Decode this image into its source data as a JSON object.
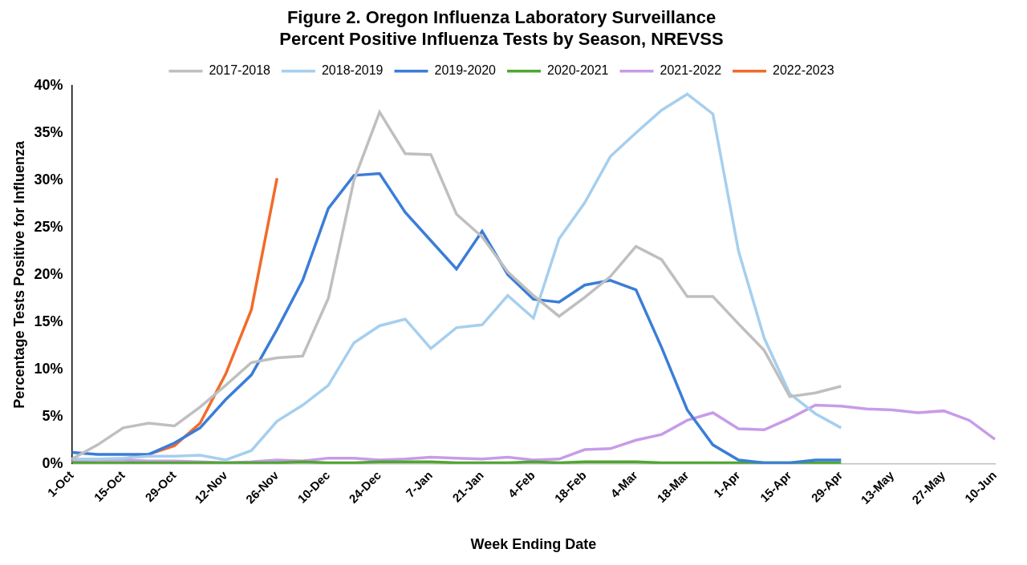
{
  "chart_data": {
    "type": "line",
    "title": "Figure 2. Oregon Influenza Laboratory Surveillance",
    "subtitle": "Percent Positive Influenza Tests by Season, NREVSS",
    "x_label": "Week Ending Date",
    "y_label": "Percentage Tests Positive for Influenza",
    "categories": [
      "1-Oct",
      null,
      "15-Oct",
      null,
      "29-Oct",
      null,
      "12-Nov",
      null,
      "26-Nov",
      null,
      "10-Dec",
      null,
      "24-Dec",
      null,
      "7-Jan",
      null,
      "21-Jan",
      null,
      "4-Feb",
      null,
      "18-Feb",
      null,
      "4-Mar",
      null,
      "18-Mar",
      null,
      "1-Apr",
      null,
      "15-Apr",
      null,
      "29-Apr",
      null,
      "13-May",
      null,
      "27-May",
      null,
      "10-Jun"
    ],
    "series": [
      {
        "name": "2017-2018",
        "color": "#bfbfbf",
        "values": [
          0.5,
          2.0,
          3.8,
          4.3,
          4.0,
          6.0,
          8.3,
          10.7,
          11.2,
          11.4,
          17.5,
          30.0,
          37.2,
          32.8,
          32.7,
          26.4,
          24.0,
          20.3,
          17.8,
          15.6,
          17.6,
          19.8,
          23.0,
          21.6,
          17.7,
          17.7,
          14.8,
          12.0,
          7.1,
          7.5,
          8.2,
          null,
          null,
          null,
          null,
          null,
          null
        ]
      },
      {
        "name": "2018-2019",
        "color": "#a6cfee",
        "values": [
          0.5,
          0.5,
          0.6,
          0.8,
          0.8,
          0.9,
          0.4,
          1.4,
          4.5,
          6.2,
          8.3,
          12.8,
          14.6,
          15.3,
          12.2,
          14.4,
          14.7,
          17.8,
          15.4,
          23.8,
          27.6,
          32.5,
          35.0,
          37.4,
          39.1,
          37.0,
          22.5,
          13.3,
          7.4,
          5.3,
          3.8,
          null,
          null,
          null,
          null,
          null,
          null
        ]
      },
      {
        "name": "2019-2020",
        "color": "#3b7dd8",
        "values": [
          1.2,
          1.0,
          1.0,
          1.0,
          2.2,
          3.8,
          6.8,
          9.4,
          14.2,
          19.4,
          27.0,
          30.5,
          30.7,
          26.6,
          23.6,
          20.6,
          24.6,
          20.0,
          17.4,
          17.1,
          18.9,
          19.4,
          18.4,
          12.3,
          5.7,
          2.0,
          0.4,
          0.1,
          0.1,
          0.4,
          0.4,
          null,
          null,
          null,
          null,
          null,
          null
        ]
      },
      {
        "name": "2020-2021",
        "color": "#4ea72e",
        "values": [
          0.1,
          0.1,
          0.1,
          0.1,
          0.1,
          0.1,
          0.1,
          0.1,
          0.1,
          0.2,
          0.1,
          0.1,
          0.2,
          0.2,
          0.2,
          0.1,
          0.1,
          0.1,
          0.2,
          0.1,
          0.2,
          0.2,
          0.2,
          0.1,
          0.1,
          0.1,
          0.1,
          0.1,
          0.1,
          0.1,
          0.1,
          null,
          null,
          null,
          null,
          null,
          null
        ]
      },
      {
        "name": "2021-2022",
        "color": "#c89be8",
        "values": [
          0.3,
          0.4,
          0.4,
          0.3,
          0.3,
          0.2,
          0.1,
          0.2,
          0.4,
          0.3,
          0.6,
          0.6,
          0.4,
          0.5,
          0.7,
          0.6,
          0.5,
          0.7,
          0.4,
          0.5,
          1.5,
          1.6,
          2.5,
          3.1,
          4.6,
          5.4,
          3.7,
          3.6,
          4.8,
          6.2,
          6.1,
          5.8,
          5.7,
          5.4,
          5.6,
          4.6,
          2.6
        ]
      },
      {
        "name": "2022-2023",
        "color": "#f26b2a",
        "values": [
          0.3,
          0.5,
          0.5,
          1.0,
          1.9,
          4.3,
          9.5,
          16.3,
          30.2,
          null,
          null,
          null,
          null,
          null,
          null,
          null,
          null,
          null,
          null,
          null,
          null,
          null,
          null,
          null,
          null,
          null,
          null,
          null,
          null,
          null,
          null,
          null,
          null,
          null,
          null,
          null,
          null
        ]
      }
    ],
    "ylim": [
      0,
      40
    ],
    "yticks": [
      {
        "value": 0,
        "label": "0%"
      },
      {
        "value": 5,
        "label": "5%"
      },
      {
        "value": 10,
        "label": "10%"
      },
      {
        "value": 15,
        "label": "15%"
      },
      {
        "value": 20,
        "label": "20%"
      },
      {
        "value": 25,
        "label": "25%"
      },
      {
        "value": 30,
        "label": "30%"
      },
      {
        "value": 35,
        "label": "35%"
      },
      {
        "value": 40,
        "label": "40%"
      }
    ],
    "grid": false,
    "legend": "top",
    "marker": "none",
    "line_style": "solid"
  }
}
